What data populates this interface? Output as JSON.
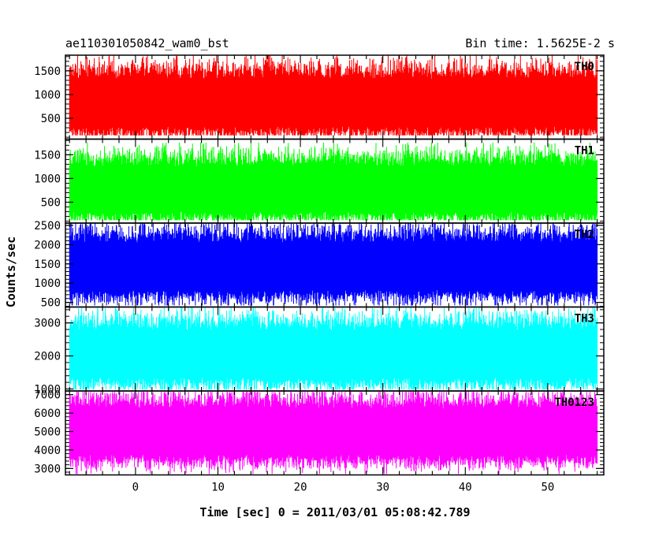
{
  "chart_data": {
    "type": "line",
    "title_left": "ae110301050842_wam0_bst",
    "title_right": "Bin time: 1.5625E-2 s",
    "xlabel": "Time [sec] 0 = 2011/03/01 05:08:42.789",
    "ylabel": "Counts/sec",
    "xlim": [
      -8,
      56
    ],
    "plot_xlim": [
      -8.5,
      56.8
    ],
    "x_ticks": [
      0,
      10,
      20,
      30,
      40,
      50
    ],
    "x_tick_labels": [
      "0",
      "10",
      "20",
      "30",
      "40",
      "50"
    ],
    "x_minor_step": 2,
    "x_sample_step": 0.015625,
    "panels": [
      {
        "name": "TH0",
        "color": "#ff0000",
        "ylim": [
          60,
          1830
        ],
        "y_ticks": [
          500,
          1000,
          1500
        ],
        "y_tick_labels": [
          "500",
          "1000",
          "1500"
        ],
        "y_minor_step": 100,
        "mean": 820,
        "band_low": 330,
        "band_high": 1330,
        "peak_low": 140,
        "peak_high": 1830
      },
      {
        "name": "TH1",
        "color": "#00ff00",
        "ylim": [
          60,
          1830
        ],
        "y_ticks": [
          500,
          1000,
          1500
        ],
        "y_tick_labels": [
          "500",
          "1000",
          "1500"
        ],
        "y_minor_step": 100,
        "mean": 760,
        "band_low": 300,
        "band_high": 1250,
        "peak_low": 120,
        "peak_high": 1760
      },
      {
        "name": "TH2",
        "color": "#0000ff",
        "ylim": [
          380,
          2560
        ],
        "y_ticks": [
          500,
          1000,
          1500,
          2000,
          2500
        ],
        "y_tick_labels": [
          "500",
          "1000",
          "1500",
          "2000",
          "2500"
        ],
        "y_minor_step": 100,
        "mean": 1430,
        "band_low": 820,
        "band_high": 2050,
        "peak_low": 420,
        "peak_high": 2560
      },
      {
        "name": "TH3",
        "color": "#00ffff",
        "ylim": [
          940,
          3480
        ],
        "y_ticks": [
          1000,
          2000,
          3000
        ],
        "y_tick_labels": [
          "1000",
          "2000",
          "3000"
        ],
        "y_minor_step": 200,
        "mean": 2060,
        "band_low": 1350,
        "band_high": 2780,
        "peak_low": 980,
        "peak_high": 3460
      },
      {
        "name": "TH0123",
        "color": "#ff00ff",
        "ylim": [
          2650,
          7200
        ],
        "y_ticks": [
          3000,
          4000,
          5000,
          6000,
          7000
        ],
        "y_tick_labels": [
          "3000",
          "4000",
          "5000",
          "6000",
          "7000"
        ],
        "y_minor_step": 200,
        "mean": 4980,
        "band_low": 3750,
        "band_high": 6250,
        "peak_low": 2700,
        "peak_high": 7150
      }
    ]
  }
}
